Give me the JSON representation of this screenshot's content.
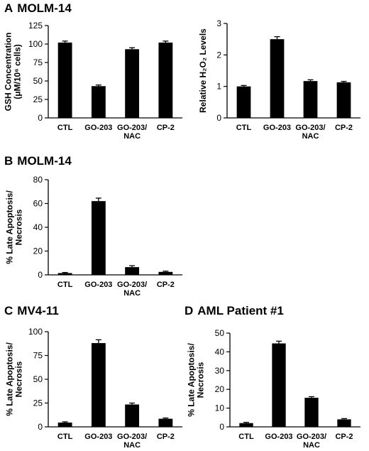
{
  "panels": [
    {
      "letter": "A",
      "title": "MOLM-14"
    },
    {
      "letter": "B",
      "title": "MOLM-14"
    },
    {
      "letter": "C",
      "title": "MV4-11"
    },
    {
      "letter": "D",
      "title": "AML Patient #1"
    }
  ],
  "chart_data": [
    {
      "type": "bar",
      "panel": "A",
      "categories": [
        "CTL",
        "GO-203",
        "GO-203/\nNAC",
        "CP-2"
      ],
      "values": [
        102,
        43,
        93,
        102
      ],
      "errors": [
        2,
        1.5,
        2,
        2
      ],
      "ylabel": "GSH Concentration\n(μM/10⁶ cells)",
      "ylim": [
        0,
        125
      ],
      "yticks": [
        0,
        25,
        50,
        75,
        100,
        125
      ],
      "grid": false,
      "color": "#000000"
    },
    {
      "type": "bar",
      "panel": "A",
      "categories": [
        "CTL",
        "GO-203",
        "GO-203/\nNAC",
        "CP-2"
      ],
      "values": [
        1.0,
        2.5,
        1.17,
        1.13
      ],
      "errors": [
        0.03,
        0.08,
        0.04,
        0.03
      ],
      "ylabel": "Relative H₂O₂ Levels",
      "ylim": [
        0,
        3
      ],
      "yticks": [
        0,
        1,
        2,
        3
      ],
      "grid": false,
      "color": "#000000"
    },
    {
      "type": "bar",
      "panel": "B",
      "categories": [
        "CTL",
        "GO-203",
        "GO-203/\nNAC",
        "CP-2"
      ],
      "values": [
        1.5,
        62,
        6.5,
        2.5
      ],
      "errors": [
        0.5,
        2.5,
        1.2,
        0.6
      ],
      "ylabel": "% Late Apoptosis/\nNecrosis",
      "ylim": [
        0,
        80
      ],
      "yticks": [
        0,
        20,
        40,
        60,
        80
      ],
      "grid": false,
      "color": "#000000"
    },
    {
      "type": "bar",
      "panel": "C",
      "categories": [
        "CTL",
        "GO-203",
        "GO-203/\nNAC",
        "CP-2"
      ],
      "values": [
        4.5,
        88,
        23.5,
        8.5
      ],
      "errors": [
        0.8,
        3.5,
        1.5,
        0.8
      ],
      "ylabel": "% Late Apoptosis/\nNecrosis",
      "ylim": [
        0,
        100
      ],
      "yticks": [
        0,
        25,
        50,
        75,
        100
      ],
      "grid": false,
      "color": "#000000"
    },
    {
      "type": "bar",
      "panel": "D",
      "categories": [
        "CTL",
        "GO-203",
        "GO-203/\nNAC",
        "CP-2"
      ],
      "values": [
        2,
        44.5,
        15.5,
        4
      ],
      "errors": [
        0.4,
        1.2,
        0.6,
        0.4
      ],
      "ylabel": "% Late Apoptosis/\nNecrosis",
      "ylim": [
        0,
        50
      ],
      "yticks": [
        0,
        10,
        20,
        30,
        40,
        50
      ],
      "grid": false,
      "color": "#000000"
    }
  ]
}
